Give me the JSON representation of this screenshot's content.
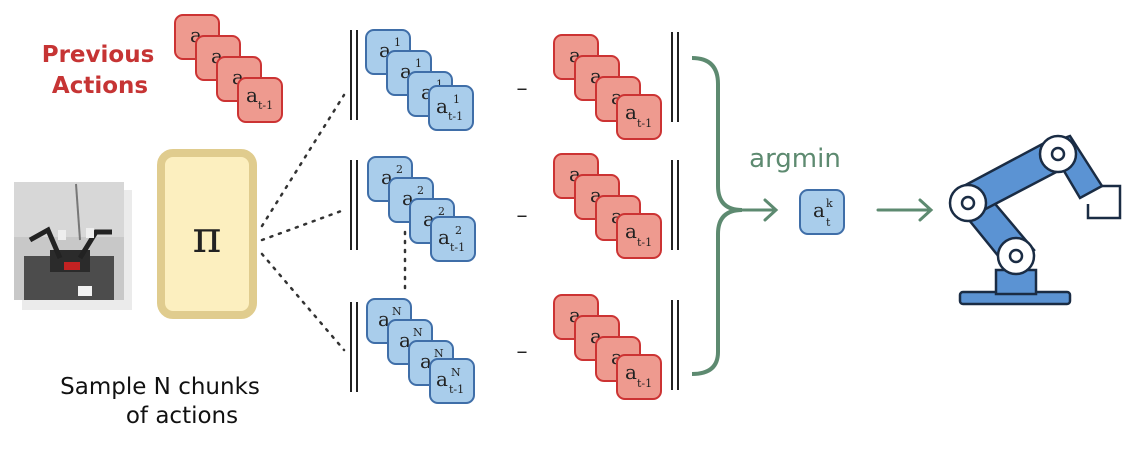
{
  "previous_actions_label": [
    "Previous",
    "Actions"
  ],
  "policy_symbol": "π",
  "sample_label": [
    "Sample N chunks",
    "of actions"
  ],
  "argmin_label": "argmin",
  "minus_sign": "–",
  "action_symbol": "a",
  "prev_subscript": "t-1",
  "sample_superscripts": [
    "1",
    "2",
    "N"
  ],
  "result_superscript": "k",
  "result_subscript": "t",
  "colors": {
    "red_text": "#c63434",
    "red_fill": "#ee9a8f",
    "red_stroke": "#cc3333",
    "blue_fill": "#a9cdeb",
    "blue_stroke": "#3f6ea8",
    "green": "#5d8a70",
    "policy_fill": "#fcefbf",
    "policy_stroke": "#e0cc8e",
    "robot_blue": "#5b93d3"
  },
  "icons": [
    "robot-arm-icon",
    "camera-photo-icon"
  ]
}
